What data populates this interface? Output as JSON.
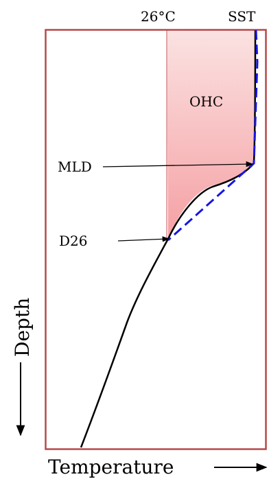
{
  "labels": {
    "temp_26": "26°C",
    "sst": "SST",
    "ohc": "OHC",
    "mld": "MLD",
    "d26": "D26",
    "depth_axis": "Depth",
    "temperature_axis": "Temperature"
  },
  "colors": {
    "frame": "#b5484a",
    "ohc_fill_top": "#fbe1e1",
    "ohc_fill_bottom": "#f6a1a4",
    "profile_line": "#000000",
    "fit_line": "#1515dd"
  },
  "icons": [
    "arrow-right-icon",
    "arrow-down-icon"
  ]
}
